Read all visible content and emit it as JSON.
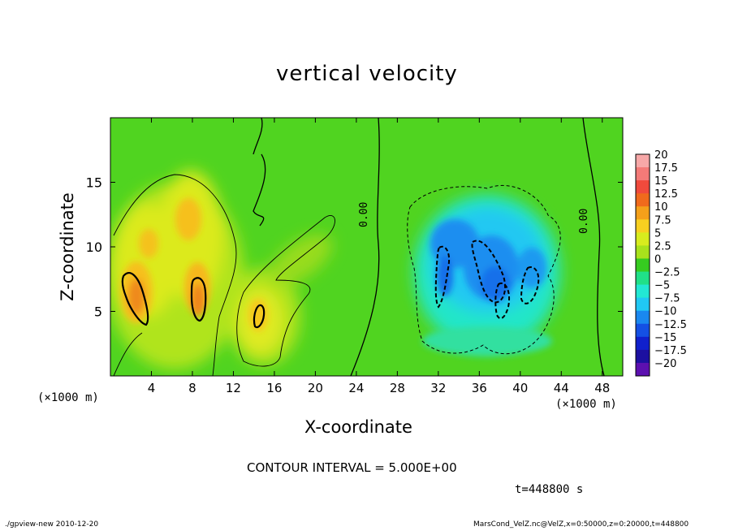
{
  "chart_data": {
    "type": "heatmap",
    "title": "vertical velocity",
    "xlabel": "X-coordinate",
    "ylabel": "Z-coordinate",
    "x_unit_label": "(×1000 m)",
    "y_unit_label": "(×1000 m)",
    "xlim": [
      0,
      50
    ],
    "ylim": [
      0,
      20
    ],
    "x_ticks": [
      "4",
      "8",
      "12",
      "16",
      "20",
      "24",
      "28",
      "32",
      "36",
      "40",
      "44",
      "48"
    ],
    "y_ticks": [
      "5",
      "10",
      "15"
    ],
    "colorbar": {
      "levels": [
        "20",
        "17.5",
        "15",
        "12.5",
        "10",
        "7.5",
        "5",
        "2.5",
        "0",
        "−2.5",
        "−5",
        "−7.5",
        "−10",
        "−12.5",
        "−15",
        "−17.5",
        "−20"
      ],
      "colors": [
        "#f7a8a8",
        "#f47a78",
        "#f04a3c",
        "#f06a1c",
        "#f4a01a",
        "#f8d020",
        "#d8ec1e",
        "#a8e21c",
        "#36cc20",
        "#20e088",
        "#22e8d4",
        "#20c8f4",
        "#1a88f0",
        "#1450e4",
        "#1020cc",
        "#1c10a0",
        "#5c10b0"
      ]
    },
    "contour_labels": [
      "0.00",
      "0.00"
    ],
    "contour_interval": "5.000E+00",
    "features": [
      {
        "kind": "updraft",
        "x": 2.5,
        "z": 6.5,
        "value": 12
      },
      {
        "kind": "updraft",
        "x": 8.5,
        "z": 7.5,
        "value": 11
      },
      {
        "kind": "updraft",
        "x": 14.5,
        "z": 5,
        "value": 7
      },
      {
        "kind": "downdraft",
        "x": 37,
        "z": 8,
        "value": -10
      }
    ]
  },
  "contour_interval_text": "CONTOUR INTERVAL = 5.000E+00",
  "time_text": "t=448800 s",
  "footer_left": "./gpview-new   2010-12-20",
  "footer_right": "MarsCond_VelZ.nc@VelZ,x=0:50000,z=0:20000,t=448800"
}
